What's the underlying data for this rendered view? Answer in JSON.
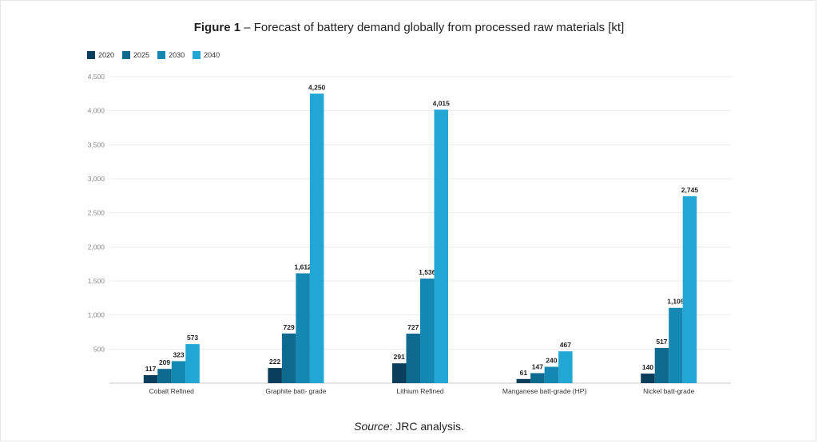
{
  "figure": {
    "label": "Figure 1",
    "title": " – Forecast of battery demand globally from processed raw materials [kt]"
  },
  "source": {
    "label": "Source",
    "text": ": JRC analysis."
  },
  "colors": {
    "2020": "#0b3d5c",
    "2025": "#0f6a8f",
    "2030": "#1488b2",
    "2040": "#22a6d3",
    "grid": "#e8e8e8",
    "axis": "#c8c8c8"
  },
  "chart_data": {
    "type": "bar",
    "title": "Forecast of battery demand globally from processed raw materials [kt]",
    "categories": [
      "Cobalt Refined",
      "Graphite batt- grade",
      "Lithium Refined",
      "Manganese batt-grade (HP)",
      "Nickel batt-grade"
    ],
    "series": [
      {
        "name": "2020",
        "values": [
          117,
          222,
          291,
          61,
          140
        ]
      },
      {
        "name": "2025",
        "values": [
          209,
          729,
          727,
          147,
          517
        ]
      },
      {
        "name": "2030",
        "values": [
          323,
          1612,
          1536,
          240,
          1105
        ]
      },
      {
        "name": "2040",
        "values": [
          573,
          4250,
          4015,
          467,
          2745
        ]
      }
    ],
    "value_labels": [
      [
        "117",
        "222",
        "291",
        "61",
        "140"
      ],
      [
        "209",
        "729",
        "727",
        "147",
        "517"
      ],
      [
        "323",
        "1,612",
        "1,536",
        "240",
        "1,105"
      ],
      [
        "573",
        "4,250",
        "4,015",
        "467",
        "2,745"
      ]
    ],
    "ylim": [
      0,
      4500
    ],
    "yticks": [
      500,
      1000,
      1500,
      2000,
      2500,
      3000,
      3500,
      4000,
      4500
    ],
    "ytick_labels": [
      "500",
      "1,000",
      "1,500",
      "2,000",
      "2,500",
      "3,000",
      "3,500",
      "4,000",
      "4,500"
    ],
    "grid": true,
    "legend_position": "top-left"
  }
}
